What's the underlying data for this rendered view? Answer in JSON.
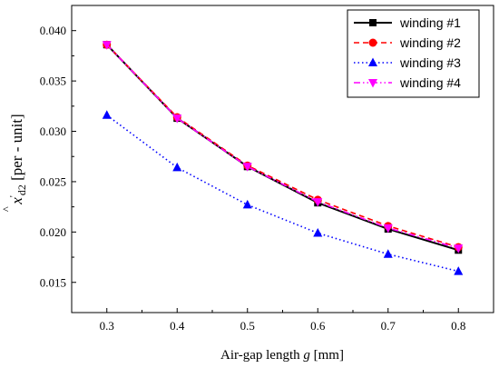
{
  "chart_data": {
    "type": "line",
    "xlabel": {
      "prefix": "Air-gap length ",
      "var": "g",
      "suffix": " [mm]"
    },
    "ylabel": {
      "symbol": "x",
      "accent": "^",
      "prime": "'",
      "subscript": "d2",
      "unit": " [per - unit]"
    },
    "xlim": [
      0.25,
      0.85
    ],
    "ylim": [
      0.012,
      0.0425
    ],
    "x_ticks": [
      "0.3",
      "0.4",
      "0.5",
      "0.6",
      "0.7",
      "0.8"
    ],
    "y_ticks": [
      "0.015",
      "0.020",
      "0.025",
      "0.030",
      "0.035",
      "0.040"
    ],
    "x": [
      0.3,
      0.4,
      0.5,
      0.6,
      0.7,
      0.8
    ],
    "legend_position": "top-right",
    "series": [
      {
        "name": "winding #1",
        "color": "#000000",
        "dash": "solid",
        "marker": "square",
        "values": [
          0.0386,
          0.0313,
          0.0265,
          0.0229,
          0.0203,
          0.0182
        ]
      },
      {
        "name": "winding #2",
        "color": "#ff0000",
        "dash": "dashed",
        "marker": "circle",
        "values": [
          0.0386,
          0.0314,
          0.0266,
          0.0232,
          0.0206,
          0.0185
        ]
      },
      {
        "name": "winding #3",
        "color": "#0000ff",
        "dash": "dotted",
        "marker": "triangle-up",
        "values": [
          0.0316,
          0.0264,
          0.0227,
          0.0199,
          0.0178,
          0.0161
        ]
      },
      {
        "name": "winding #4",
        "color": "#ff00ff",
        "dash": "dashdotdot",
        "marker": "triangle-down",
        "values": [
          0.0386,
          0.0313,
          0.0265,
          0.023,
          0.0204,
          0.0184
        ]
      }
    ]
  }
}
